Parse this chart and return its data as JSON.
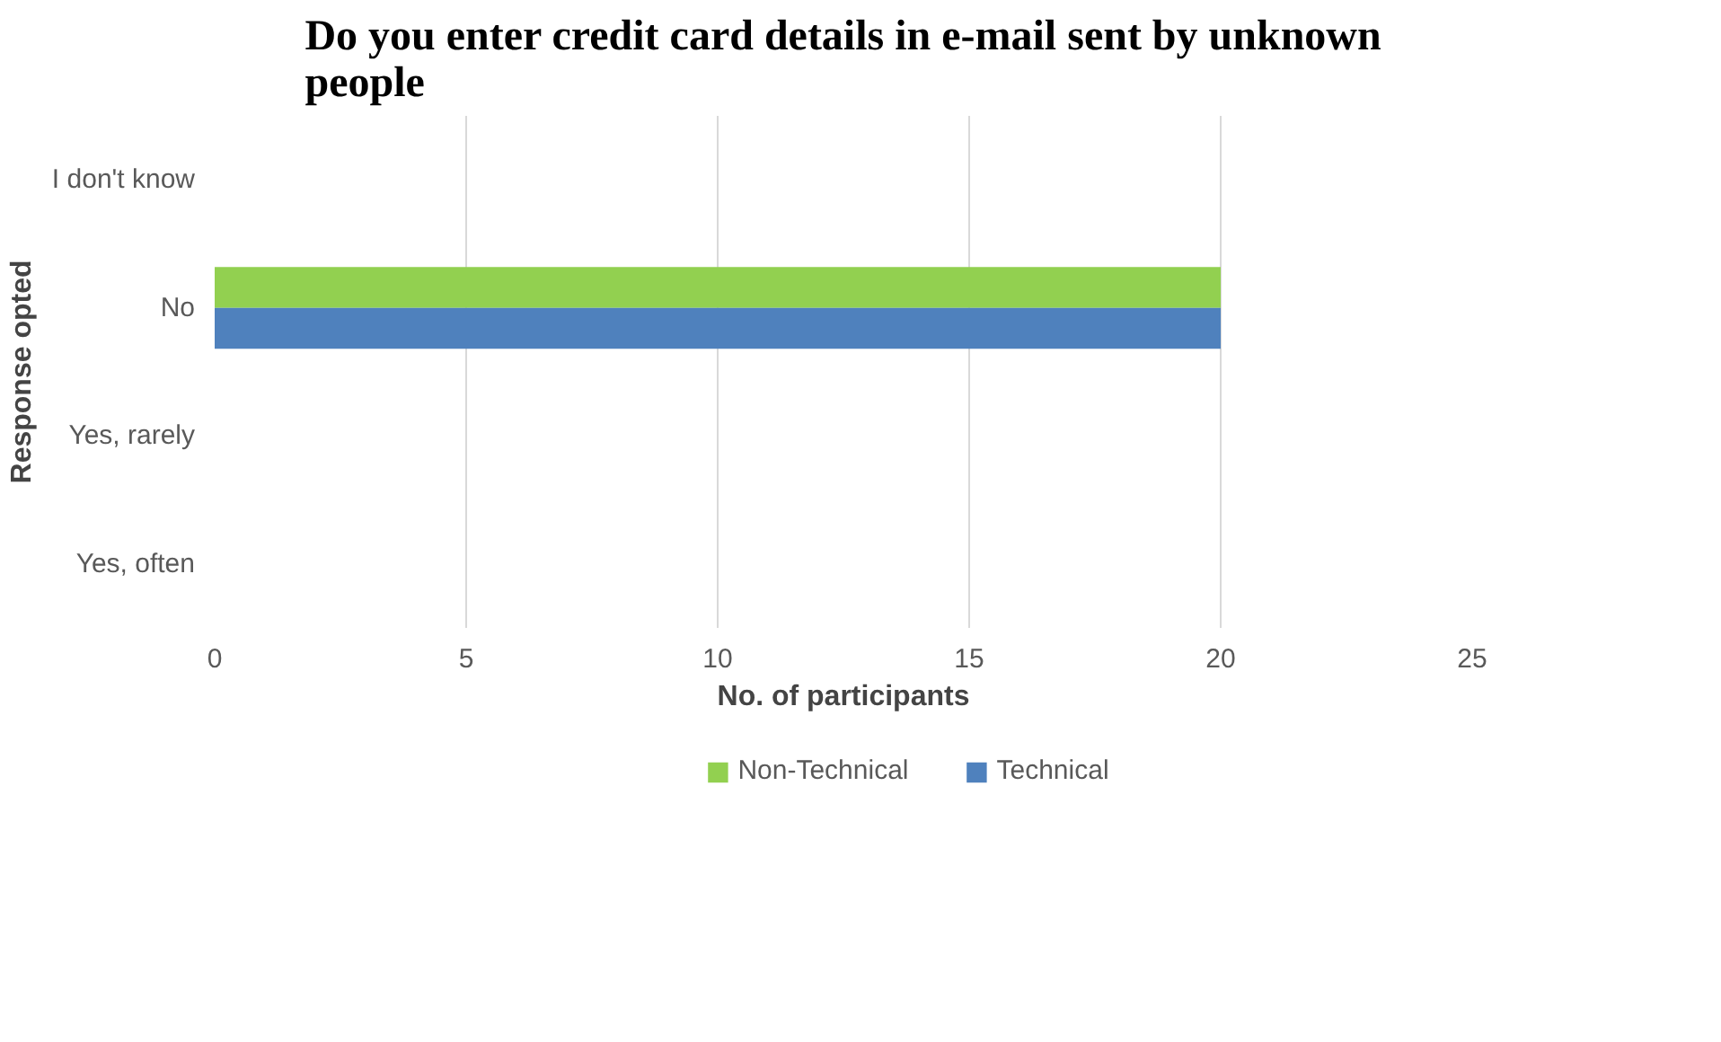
{
  "chart_data": {
    "type": "bar",
    "orientation": "horizontal",
    "title": "Do you enter credit card details in e-mail sent by unknown people",
    "xlabel": "No. of participants",
    "ylabel": "Response opted",
    "categories": [
      "I don't know",
      "No",
      "Yes, rarely",
      "Yes, often"
    ],
    "series": [
      {
        "name": "Non-Technical",
        "color": "#92d050",
        "values": [
          0,
          20,
          0,
          0
        ]
      },
      {
        "name": "Technical",
        "color": "#4f81bd",
        "values": [
          0,
          20,
          0,
          0
        ]
      }
    ],
    "xlim": [
      0,
      25
    ],
    "xticks": [
      0,
      5,
      10,
      15,
      20,
      25
    ],
    "grid": "x",
    "legend": "bottom"
  }
}
